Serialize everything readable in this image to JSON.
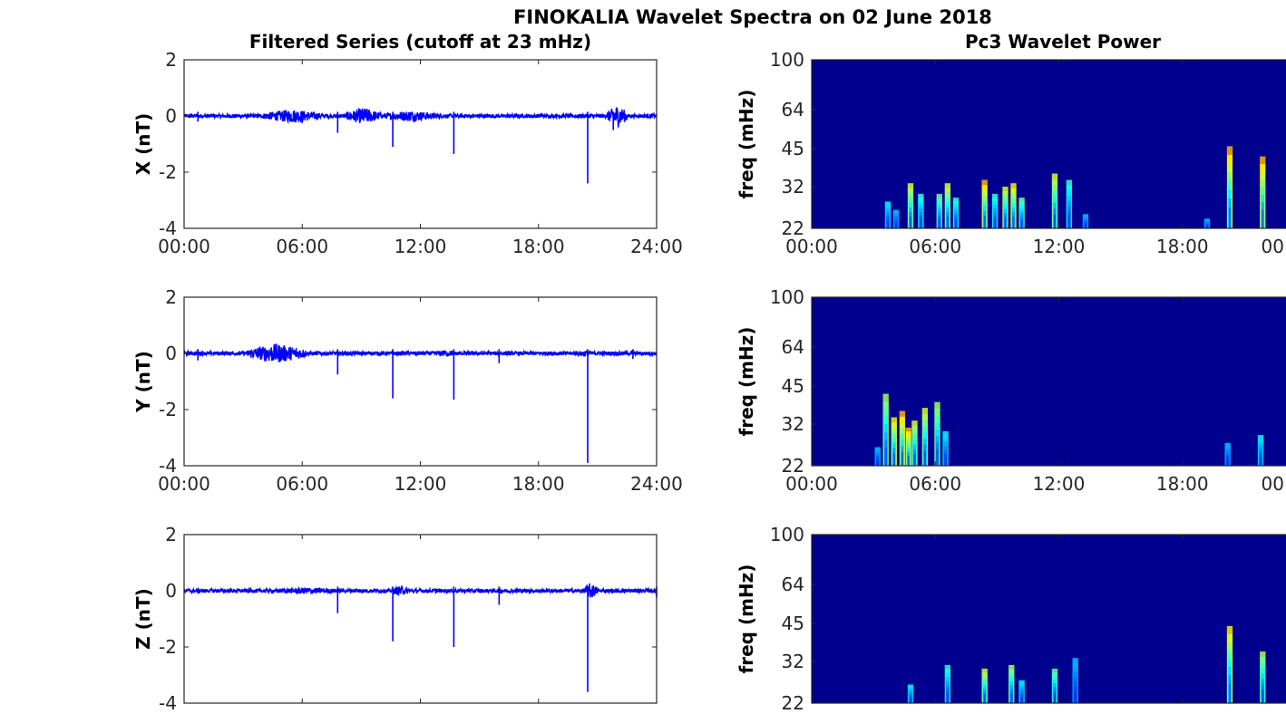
{
  "title": "FINOKALIA Wavelet Spectra on 02 June 2018",
  "colors": {
    "series": "#0000ff",
    "spectrum_background": "#00008f",
    "axis": "#262626"
  },
  "chart_data": [
    {
      "type": "line",
      "panel": "X",
      "title": "Filtered Series (cutoff at 23 mHz)",
      "ylabel": "X (nT)",
      "xlabel": "",
      "ylim": [
        -4,
        2
      ],
      "yticks": [
        "2",
        "0",
        "-2",
        "-4"
      ],
      "xticks": [
        "00:00",
        "06:00",
        "12:00",
        "18:00",
        "24:00"
      ],
      "noise_bursts": [
        {
          "start": 4.0,
          "end": 7.0,
          "amplitude": 0.25
        },
        {
          "start": 8.2,
          "end": 10.0,
          "amplitude": 0.3
        },
        {
          "start": 10.0,
          "end": 13.0,
          "amplitude": 0.2
        },
        {
          "start": 21.5,
          "end": 22.5,
          "amplitude": 0.4
        }
      ],
      "spikes": [
        {
          "hour": 0.7,
          "value": -0.2
        },
        {
          "hour": 6.0,
          "value": -0.25
        },
        {
          "hour": 7.8,
          "value": -0.6
        },
        {
          "hour": 10.6,
          "value": -1.1
        },
        {
          "hour": 13.7,
          "value": -1.35
        },
        {
          "hour": 20.5,
          "value": -2.4
        },
        {
          "hour": 21.8,
          "value": -0.5
        }
      ]
    },
    {
      "type": "line",
      "panel": "Y",
      "title": "",
      "ylabel": "Y (nT)",
      "xlabel": "",
      "ylim": [
        -4,
        2
      ],
      "yticks": [
        "2",
        "0",
        "-2",
        "-4"
      ],
      "xticks": [
        "00:00",
        "06:00",
        "12:00",
        "18:00",
        "24:00"
      ],
      "noise_bursts": [
        {
          "start": 3.2,
          "end": 6.2,
          "amplitude": 0.35
        },
        {
          "start": 12.5,
          "end": 14.0,
          "amplitude": 0.12
        },
        {
          "start": 19.8,
          "end": 21.0,
          "amplitude": 0.12
        }
      ],
      "spikes": [
        {
          "hour": 0.7,
          "value": -0.25
        },
        {
          "hour": 7.8,
          "value": -0.75
        },
        {
          "hour": 10.6,
          "value": -1.6
        },
        {
          "hour": 13.7,
          "value": -1.65
        },
        {
          "hour": 16.0,
          "value": -0.35
        },
        {
          "hour": 20.5,
          "value": -3.9
        },
        {
          "hour": 22.8,
          "value": -0.2
        }
      ]
    },
    {
      "type": "line",
      "panel": "Z",
      "title": "",
      "ylabel": "Z (nT)",
      "xlabel": "",
      "ylim": [
        -4,
        2
      ],
      "yticks": [
        "2",
        "0",
        "-2",
        "-4"
      ],
      "xticks": [],
      "noise_bursts": [
        {
          "start": 4.0,
          "end": 8.5,
          "amplitude": 0.12
        },
        {
          "start": 10.5,
          "end": 11.5,
          "amplitude": 0.18
        },
        {
          "start": 20.3,
          "end": 21.0,
          "amplitude": 0.3
        }
      ],
      "spikes": [
        {
          "hour": 7.8,
          "value": -0.8
        },
        {
          "hour": 10.6,
          "value": -1.8
        },
        {
          "hour": 13.7,
          "value": -2.0
        },
        {
          "hour": 16.0,
          "value": -0.5
        },
        {
          "hour": 20.5,
          "value": -3.6
        },
        {
          "hour": 24.0,
          "value": -0.25
        }
      ]
    },
    {
      "type": "heatmap",
      "panel": "X",
      "title": "Pc3 Wavelet Power",
      "ylabel": "freq (mHz)",
      "xlabel": "",
      "yscale": "log",
      "ylim": [
        22,
        100
      ],
      "yticks": [
        "100",
        "64",
        "45",
        "32",
        "22"
      ],
      "xticks": [
        "00:00",
        "06:00",
        "12:00",
        "18:00",
        "00"
      ],
      "bursts": [
        {
          "hour": 3.7,
          "peak_freq": 28,
          "intensity": 0.4
        },
        {
          "hour": 4.1,
          "peak_freq": 26,
          "intensity": 0.3
        },
        {
          "hour": 4.8,
          "peak_freq": 33,
          "intensity": 0.8
        },
        {
          "hour": 5.3,
          "peak_freq": 30,
          "intensity": 0.5
        },
        {
          "hour": 6.2,
          "peak_freq": 30,
          "intensity": 0.6
        },
        {
          "hour": 6.6,
          "peak_freq": 33,
          "intensity": 0.8
        },
        {
          "hour": 7.0,
          "peak_freq": 29,
          "intensity": 0.5
        },
        {
          "hour": 8.4,
          "peak_freq": 34,
          "intensity": 1.0
        },
        {
          "hour": 8.9,
          "peak_freq": 30,
          "intensity": 0.5
        },
        {
          "hour": 9.4,
          "peak_freq": 32,
          "intensity": 0.8
        },
        {
          "hour": 9.8,
          "peak_freq": 33,
          "intensity": 0.9
        },
        {
          "hour": 10.2,
          "peak_freq": 29,
          "intensity": 0.6
        },
        {
          "hour": 11.8,
          "peak_freq": 36,
          "intensity": 0.8
        },
        {
          "hour": 12.5,
          "peak_freq": 34,
          "intensity": 0.5
        },
        {
          "hour": 13.3,
          "peak_freq": 25,
          "intensity": 0.3
        },
        {
          "hour": 19.2,
          "peak_freq": 24,
          "intensity": 0.3
        },
        {
          "hour": 20.3,
          "peak_freq": 46,
          "intensity": 1.0
        },
        {
          "hour": 21.9,
          "peak_freq": 42,
          "intensity": 1.0
        }
      ]
    },
    {
      "type": "heatmap",
      "panel": "Y",
      "title": "",
      "ylabel": "freq (mHz)",
      "xlabel": "",
      "yscale": "log",
      "ylim": [
        22,
        100
      ],
      "yticks": [
        "100",
        "64",
        "45",
        "32",
        "22"
      ],
      "xticks": [
        "00:00",
        "06:00",
        "12:00",
        "18:00",
        "00"
      ],
      "bursts": [
        {
          "hour": 3.2,
          "peak_freq": 26,
          "intensity": 0.3
        },
        {
          "hour": 3.6,
          "peak_freq": 42,
          "intensity": 0.7
        },
        {
          "hour": 4.0,
          "peak_freq": 34,
          "intensity": 0.9
        },
        {
          "hour": 4.4,
          "peak_freq": 36,
          "intensity": 1.0
        },
        {
          "hour": 4.7,
          "peak_freq": 31,
          "intensity": 1.0
        },
        {
          "hour": 5.0,
          "peak_freq": 33,
          "intensity": 0.8
        },
        {
          "hour": 5.5,
          "peak_freq": 37,
          "intensity": 0.8
        },
        {
          "hour": 6.1,
          "peak_freq": 39,
          "intensity": 0.7
        },
        {
          "hour": 6.5,
          "peak_freq": 30,
          "intensity": 0.4
        },
        {
          "hour": 20.2,
          "peak_freq": 27,
          "intensity": 0.3
        },
        {
          "hour": 21.8,
          "peak_freq": 29,
          "intensity": 0.4
        }
      ]
    },
    {
      "type": "heatmap",
      "panel": "Z",
      "title": "",
      "ylabel": "freq (mHz)",
      "xlabel": "",
      "yscale": "log",
      "ylim": [
        22,
        100
      ],
      "yticks": [
        "100",
        "64",
        "45",
        "32",
        "22"
      ],
      "xticks": [],
      "bursts": [
        {
          "hour": 4.8,
          "peak_freq": 26,
          "intensity": 0.4
        },
        {
          "hour": 6.6,
          "peak_freq": 31,
          "intensity": 0.5
        },
        {
          "hour": 8.4,
          "peak_freq": 30,
          "intensity": 0.8
        },
        {
          "hour": 9.7,
          "peak_freq": 31,
          "intensity": 0.7
        },
        {
          "hour": 10.2,
          "peak_freq": 27,
          "intensity": 0.4
        },
        {
          "hour": 11.8,
          "peak_freq": 30,
          "intensity": 0.6
        },
        {
          "hour": 12.8,
          "peak_freq": 33,
          "intensity": 0.3
        },
        {
          "hour": 20.3,
          "peak_freq": 44,
          "intensity": 0.9
        },
        {
          "hour": 21.9,
          "peak_freq": 35,
          "intensity": 0.7
        }
      ]
    }
  ]
}
